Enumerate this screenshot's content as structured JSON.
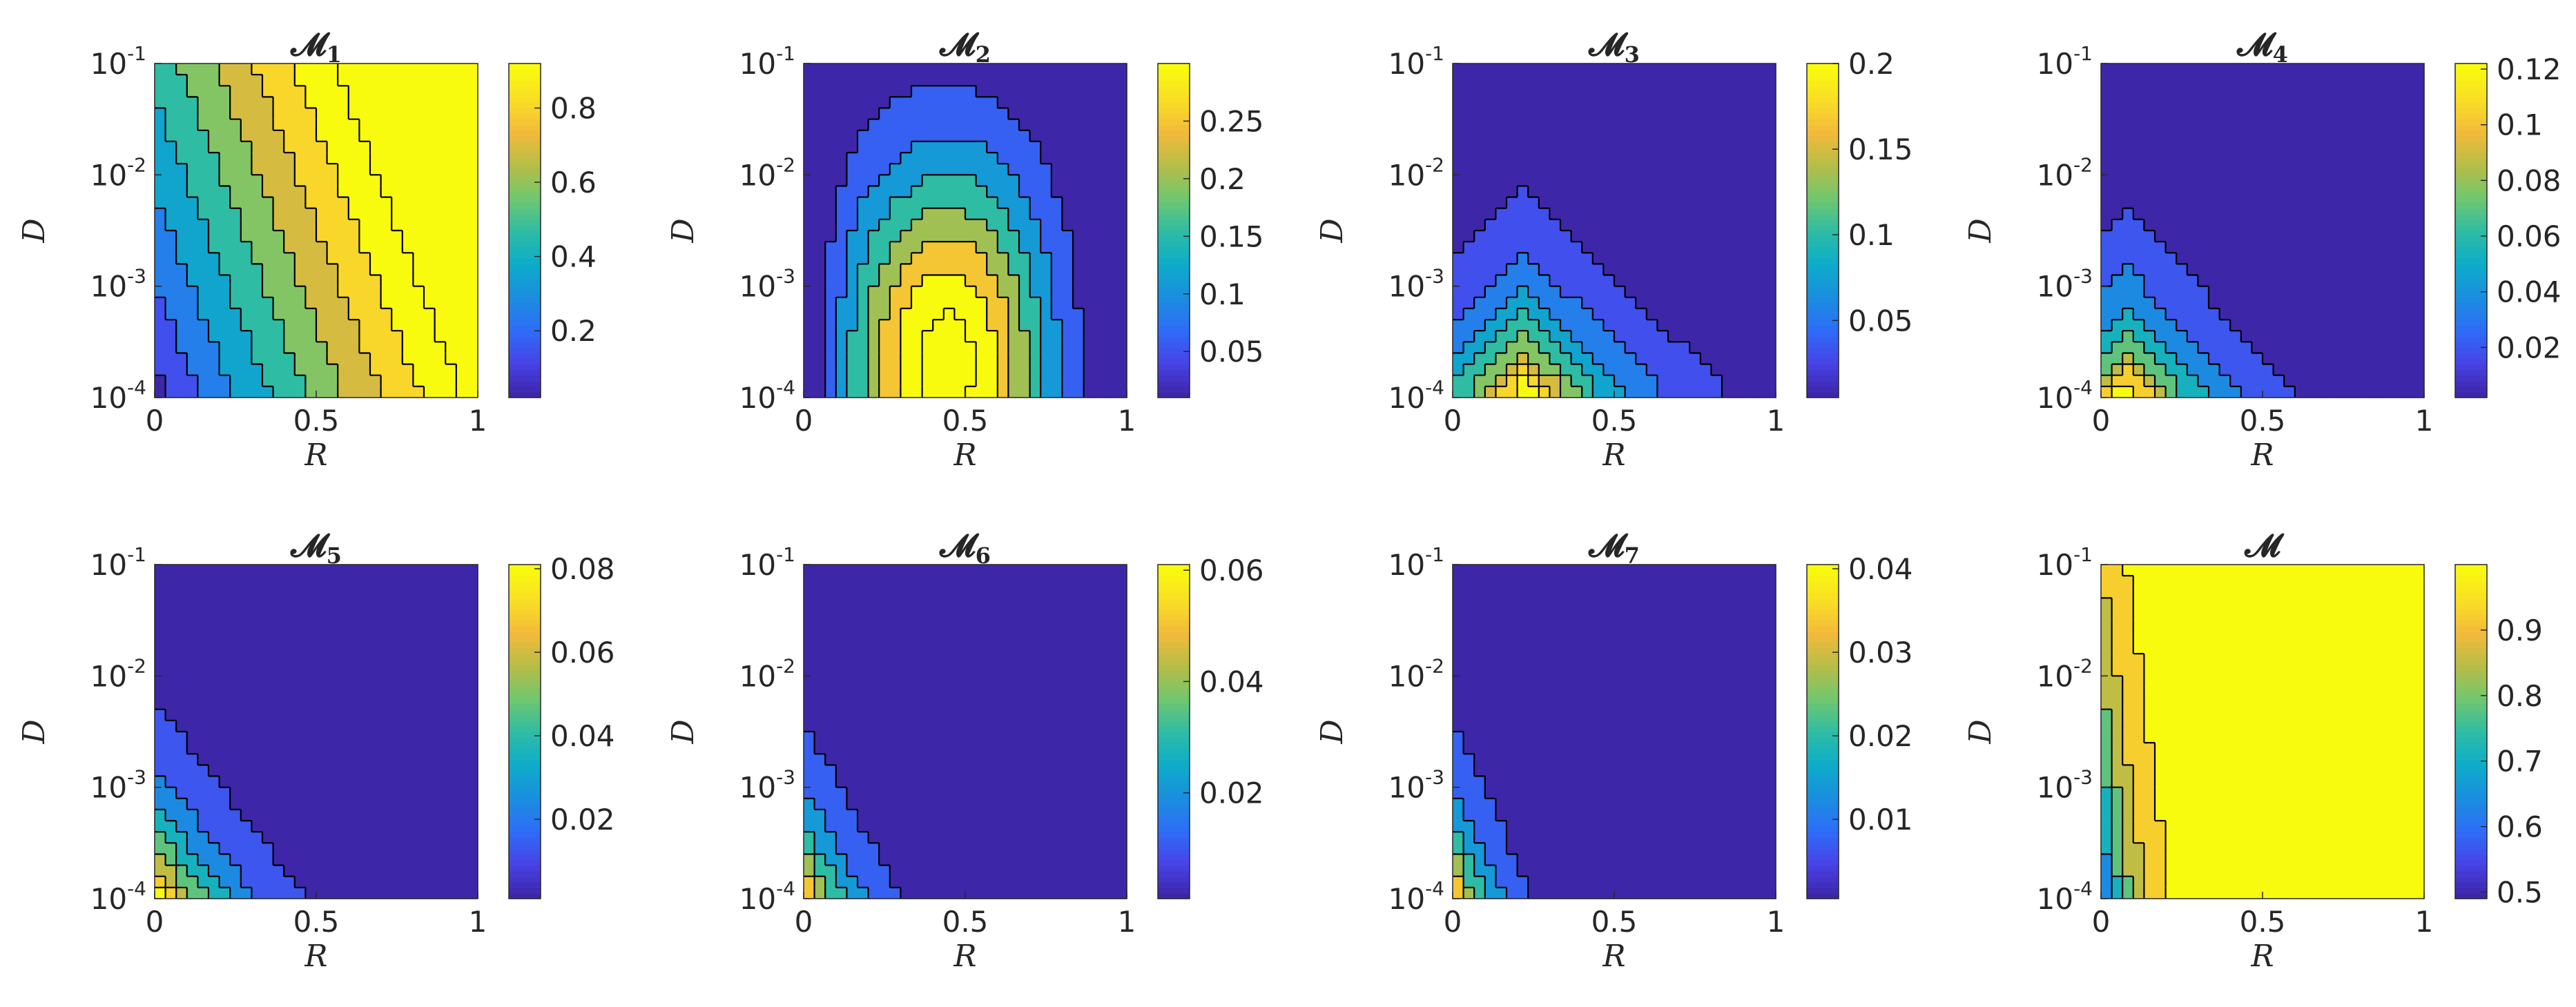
{
  "figure": {
    "colormap": "parula",
    "colormap_stops": [
      "#3e26a8",
      "#4744e8",
      "#2d6ef7",
      "#1a8fde",
      "#0eacc9",
      "#2fbca4",
      "#71c76e",
      "#b7bd47",
      "#f3ba3b",
      "#f9df24",
      "#f9fb0e"
    ],
    "contour_line_color": "#000000"
  },
  "chart_data": [
    {
      "type": "heatmap",
      "panel": "M1",
      "title_main": "𝓜",
      "title_sub": "1",
      "xlabel": "R",
      "ylabel": "D",
      "xlim": [
        0,
        1
      ],
      "ylim": [
        0.0001,
        0.1
      ],
      "yscale": "log",
      "x_ticks": [
        "0",
        "0.5",
        "1"
      ],
      "y_tick_base": "10",
      "y_tick_exponents": [
        "-1",
        "-2",
        "-3",
        "-4"
      ],
      "colorbar": {
        "range": [
          0.02,
          0.92
        ],
        "ticks": [
          0.2,
          0.4,
          0.6,
          0.8
        ],
        "tick_labels": [
          "0.2",
          "0.4",
          "0.6",
          "0.8"
        ]
      },
      "field": {
        "kind": "increasing_in_R",
        "contour_levels": 9
      }
    },
    {
      "type": "heatmap",
      "panel": "M2",
      "title_main": "𝓜",
      "title_sub": "2",
      "xlabel": "R",
      "ylabel": "D",
      "xlim": [
        0,
        1
      ],
      "ylim": [
        0.0001,
        0.1
      ],
      "yscale": "log",
      "x_ticks": [
        "0",
        "0.5",
        "1"
      ],
      "y_tick_base": "10",
      "y_tick_exponents": [
        "-1",
        "-2",
        "-3",
        "-4"
      ],
      "colorbar": {
        "range": [
          0.01,
          0.3
        ],
        "ticks": [
          0.05,
          0.1,
          0.15,
          0.2,
          0.25
        ],
        "tick_labels": [
          "0.05",
          "0.1",
          "0.15",
          "0.2",
          "0.25"
        ]
      },
      "field": {
        "kind": "hump",
        "peak_R": 0.45,
        "peak_logD": -3.7,
        "contour_levels": 7
      }
    },
    {
      "type": "heatmap",
      "panel": "M3",
      "title_main": "𝓜",
      "title_sub": "3",
      "xlabel": "R",
      "ylabel": "D",
      "xlim": [
        0,
        1
      ],
      "ylim": [
        0.0001,
        0.1
      ],
      "yscale": "log",
      "x_ticks": [
        "0",
        "0.5",
        "1"
      ],
      "y_tick_base": "10",
      "y_tick_exponents": [
        "-1",
        "-2",
        "-3",
        "-4"
      ],
      "colorbar": {
        "range": [
          0.005,
          0.2
        ],
        "ticks": [
          0.05,
          0.1,
          0.15,
          0.2
        ],
        "tick_labels": [
          "0.05",
          "0.1",
          "0.15",
          "0.2"
        ]
      },
      "field": {
        "kind": "decay_peak",
        "peak_R": 0.22,
        "peak_logD": -3.9,
        "extent": 0.9,
        "contour_levels": 9
      }
    },
    {
      "type": "heatmap",
      "panel": "M4",
      "title_main": "𝓜",
      "title_sub": "4",
      "xlabel": "R",
      "ylabel": "D",
      "xlim": [
        0,
        1
      ],
      "ylim": [
        0.0001,
        0.1
      ],
      "yscale": "log",
      "x_ticks": [
        "0",
        "0.5",
        "1"
      ],
      "y_tick_base": "10",
      "y_tick_exponents": [
        "-1",
        "-2",
        "-3",
        "-4"
      ],
      "colorbar": {
        "range": [
          0.002,
          0.122
        ],
        "ticks": [
          0.02,
          0.04,
          0.06,
          0.08,
          0.1,
          0.12
        ],
        "tick_labels": [
          "0.02",
          "0.04",
          "0.06",
          "0.08",
          "0.1",
          "0.12"
        ]
      },
      "field": {
        "kind": "decay_peak",
        "peak_R": 0.08,
        "peak_logD": -3.95,
        "extent": 0.78,
        "contour_levels": 8
      }
    },
    {
      "type": "heatmap",
      "panel": "M5",
      "title_main": "𝓜",
      "title_sub": "5",
      "xlabel": "R",
      "ylabel": "D",
      "xlim": [
        0,
        1
      ],
      "ylim": [
        0.0001,
        0.1
      ],
      "yscale": "log",
      "x_ticks": [
        "0",
        "0.5",
        "1"
      ],
      "y_tick_base": "10",
      "y_tick_exponents": [
        "-1",
        "-2",
        "-3",
        "-4"
      ],
      "colorbar": {
        "range": [
          0.001,
          0.081
        ],
        "ticks": [
          0.02,
          0.04,
          0.06,
          0.08
        ],
        "tick_labels": [
          "0.02",
          "0.04",
          "0.06",
          "0.08"
        ]
      },
      "field": {
        "kind": "decay_peak",
        "peak_R": 0.02,
        "peak_logD": -4.0,
        "extent": 0.7,
        "contour_levels": 8
      }
    },
    {
      "type": "heatmap",
      "panel": "M6",
      "title_main": "𝓜",
      "title_sub": "6",
      "xlabel": "R",
      "ylabel": "D",
      "xlim": [
        0,
        1
      ],
      "ylim": [
        0.0001,
        0.1
      ],
      "yscale": "log",
      "x_ticks": [
        "0",
        "0.5",
        "1"
      ],
      "y_tick_base": "10",
      "y_tick_exponents": [
        "-1",
        "-2",
        "-3",
        "-4"
      ],
      "colorbar": {
        "range": [
          0.001,
          0.061
        ],
        "ticks": [
          0.02,
          0.04,
          0.06
        ],
        "tick_labels": [
          "0.02",
          "0.04",
          "0.06"
        ]
      },
      "field": {
        "kind": "decay_peak",
        "peak_R": 0.0,
        "peak_logD": -4.0,
        "extent": 0.5,
        "contour_levels": 7
      }
    },
    {
      "type": "heatmap",
      "panel": "M7",
      "title_main": "𝓜",
      "title_sub": "7",
      "xlabel": "R",
      "ylabel": "D",
      "xlim": [
        0,
        1
      ],
      "ylim": [
        0.0001,
        0.1
      ],
      "yscale": "log",
      "x_ticks": [
        "0",
        "0.5",
        "1"
      ],
      "y_tick_base": "10",
      "y_tick_exponents": [
        "-1",
        "-2",
        "-3",
        "-4"
      ],
      "colorbar": {
        "range": [
          0.0005,
          0.0405
        ],
        "ticks": [
          0.01,
          0.02,
          0.03,
          0.04
        ],
        "tick_labels": [
          "0.01",
          "0.02",
          "0.03",
          "0.04"
        ]
      },
      "field": {
        "kind": "decay_peak",
        "peak_R": 0.0,
        "peak_logD": -4.0,
        "extent": 0.42,
        "contour_levels": 7
      }
    },
    {
      "type": "heatmap",
      "panel": "M",
      "title_main": "𝓜",
      "title_sub": "",
      "xlabel": "R",
      "ylabel": "D",
      "xlim": [
        0,
        1
      ],
      "ylim": [
        0.0001,
        0.1
      ],
      "yscale": "log",
      "x_ticks": [
        "0",
        "0.5",
        "1"
      ],
      "y_tick_base": "10",
      "y_tick_exponents": [
        "-1",
        "-2",
        "-3",
        "-4"
      ],
      "colorbar": {
        "range": [
          0.49,
          1.0
        ],
        "ticks": [
          0.5,
          0.6,
          0.7,
          0.8,
          0.9
        ],
        "tick_labels": [
          "0.5",
          "0.6",
          "0.7",
          "0.8",
          "0.9"
        ]
      },
      "field": {
        "kind": "total",
        "contour_levels": 8
      }
    }
  ]
}
